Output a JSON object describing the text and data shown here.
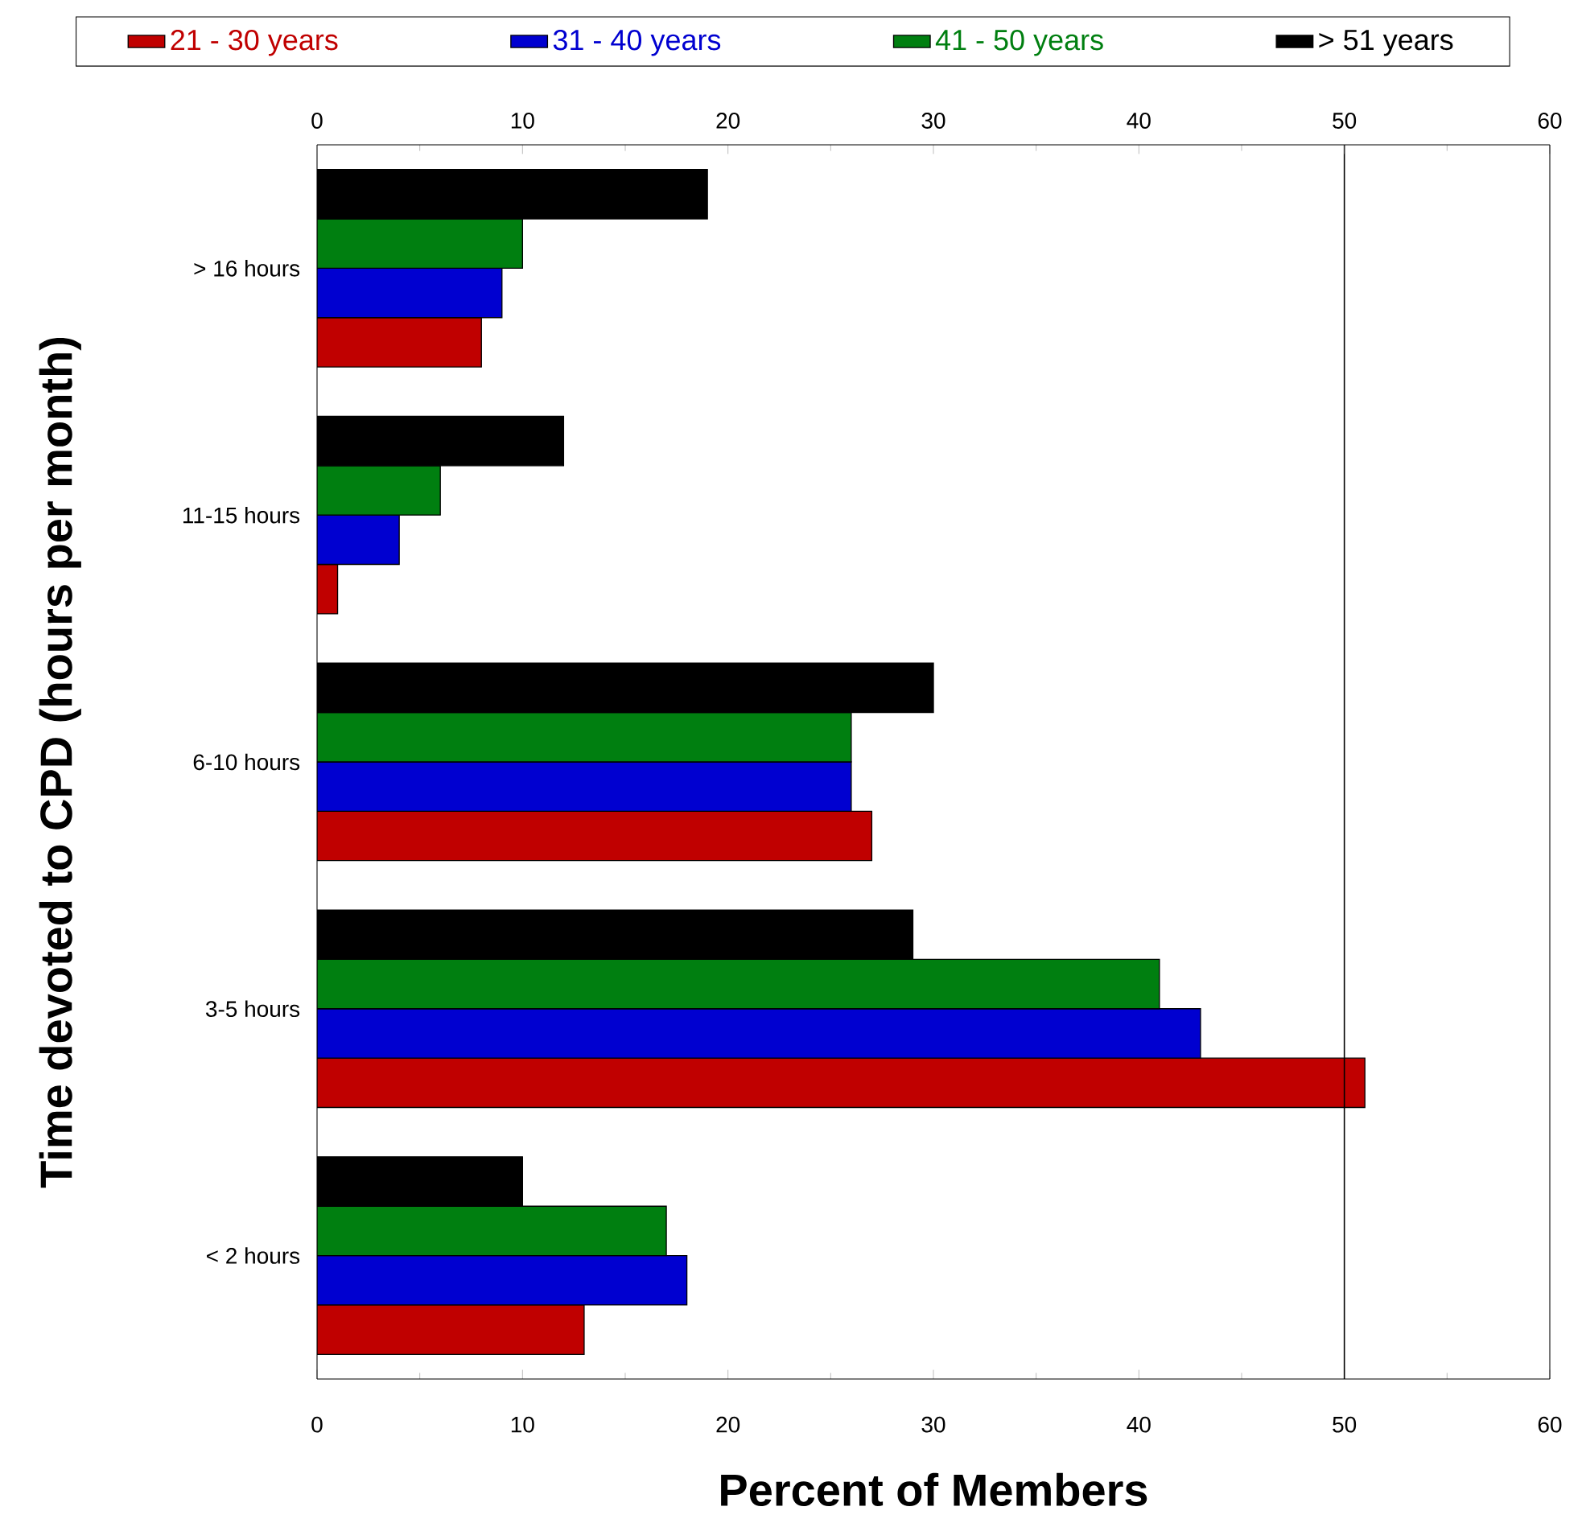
{
  "chart_data": {
    "type": "bar",
    "orientation": "horizontal",
    "xlabel": "Percent of Members",
    "ylabel": "Time devoted to CPD (hours per month)",
    "categories": [
      "> 16 hours",
      "11-15 hours",
      "6-10 hours",
      "3-5 hours",
      "< 2 hours"
    ],
    "series": [
      {
        "name": "21 - 30 years",
        "color": "#c00000",
        "values": [
          8,
          1,
          27,
          51,
          13
        ]
      },
      {
        "name": "31 - 40 years",
        "color": "#0000d0",
        "values": [
          9,
          4,
          26,
          43,
          18
        ]
      },
      {
        "name": "41 - 50 years",
        "color": "#007f10",
        "values": [
          10,
          6,
          26,
          41,
          17
        ]
      },
      {
        "name": "> 51 years",
        "color": "#000000",
        "values": [
          19,
          12,
          30,
          29,
          10
        ]
      }
    ],
    "xlim": [
      0,
      60
    ],
    "xticks": [
      0,
      {
        "value": 5,
        "label": null
      },
      10,
      {
        "value": 15,
        "label": null
      },
      20,
      {
        "value": 25,
        "label": null
      },
      30,
      {
        "value": 35,
        "label": null
      },
      40,
      {
        "value": 45,
        "label": null
      },
      50,
      {
        "value": 55,
        "label": null
      },
      60
    ],
    "x2lim": [
      0,
      60
    ],
    "x2ticks": [
      0,
      {
        "value": 5,
        "label": null
      },
      10,
      {
        "value": 15,
        "label": null
      },
      20,
      {
        "value": 25,
        "label": null
      },
      30,
      {
        "value": 35,
        "label": null
      },
      40,
      {
        "value": 45,
        "label": null
      },
      50,
      {
        "value": 55,
        "label": null
      },
      60
    ],
    "ref_lines": [
      {
        "axis": "x",
        "value": 50,
        "color": "#000000"
      }
    ],
    "legend": "top"
  }
}
